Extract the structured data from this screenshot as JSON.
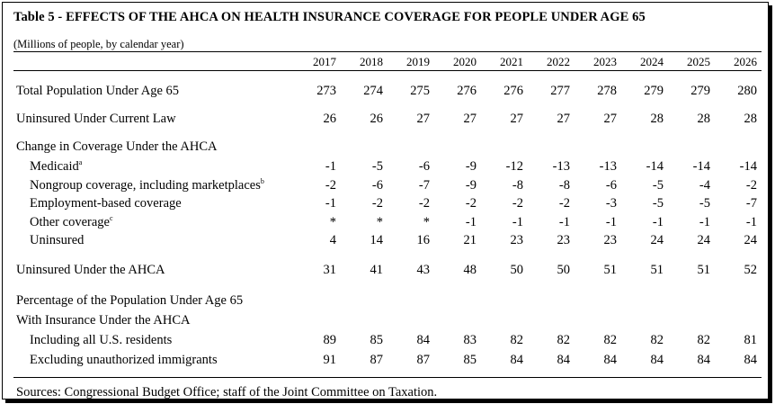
{
  "title": "Table 5 - EFFECTS OF THE AHCA ON HEALTH INSURANCE COVERAGE FOR PEOPLE UNDER AGE 65",
  "units": "(Millions of people, by calendar year)",
  "years": [
    "2017",
    "2018",
    "2019",
    "2020",
    "2021",
    "2022",
    "2023",
    "2024",
    "2025",
    "2026"
  ],
  "rows": {
    "total_population": {
      "label": "Total Population Under Age 65",
      "values": [
        "273",
        "274",
        "275",
        "276",
        "276",
        "277",
        "278",
        "279",
        "279",
        "280"
      ]
    },
    "uninsured_current": {
      "label": "Uninsured Under Current Law",
      "values": [
        "26",
        "26",
        "27",
        "27",
        "27",
        "27",
        "27",
        "28",
        "28",
        "28"
      ]
    },
    "change_header": {
      "label": "Change in Coverage Under the AHCA"
    },
    "medicaid": {
      "label": "Medicaid",
      "sup": "a",
      "values": [
        "-1",
        "-5",
        "-6",
        "-9",
        "-12",
        "-13",
        "-13",
        "-14",
        "-14",
        "-14"
      ]
    },
    "nongroup": {
      "label": "Nongroup coverage, including marketplaces",
      "sup": "b",
      "values": [
        "-2",
        "-6",
        "-7",
        "-9",
        "-8",
        "-8",
        "-6",
        "-5",
        "-4",
        "-2"
      ]
    },
    "employment": {
      "label": "Employment-based coverage",
      "values": [
        "-1",
        "-2",
        "-2",
        "-2",
        "-2",
        "-2",
        "-3",
        "-5",
        "-5",
        "-7"
      ]
    },
    "other": {
      "label": "Other coverage",
      "sup": "c",
      "values": [
        "*",
        "*",
        "*",
        "-1",
        "-1",
        "-1",
        "-1",
        "-1",
        "-1",
        "-1"
      ]
    },
    "uninsured_change": {
      "label": "Uninsured",
      "values": [
        "4",
        "14",
        "16",
        "21",
        "23",
        "23",
        "23",
        "24",
        "24",
        "24"
      ]
    },
    "uninsured_ahca": {
      "label": "Uninsured Under the AHCA",
      "values": [
        "31",
        "41",
        "43",
        "48",
        "50",
        "50",
        "51",
        "51",
        "51",
        "52"
      ]
    },
    "pct_header_1": {
      "label": "Percentage of the Population Under Age 65"
    },
    "pct_header_2": {
      "label": "With Insurance Under the AHCA"
    },
    "including_all": {
      "label": "Including all U.S. residents",
      "values": [
        "89",
        "85",
        "84",
        "83",
        "82",
        "82",
        "82",
        "82",
        "82",
        "81"
      ]
    },
    "excluding_unauth": {
      "label": "Excluding unauthorized immigrants",
      "values": [
        "91",
        "87",
        "87",
        "85",
        "84",
        "84",
        "84",
        "84",
        "84",
        "84"
      ]
    }
  },
  "footer": "Sources: Congressional Budget Office; staff of the Joint Committee on Taxation."
}
